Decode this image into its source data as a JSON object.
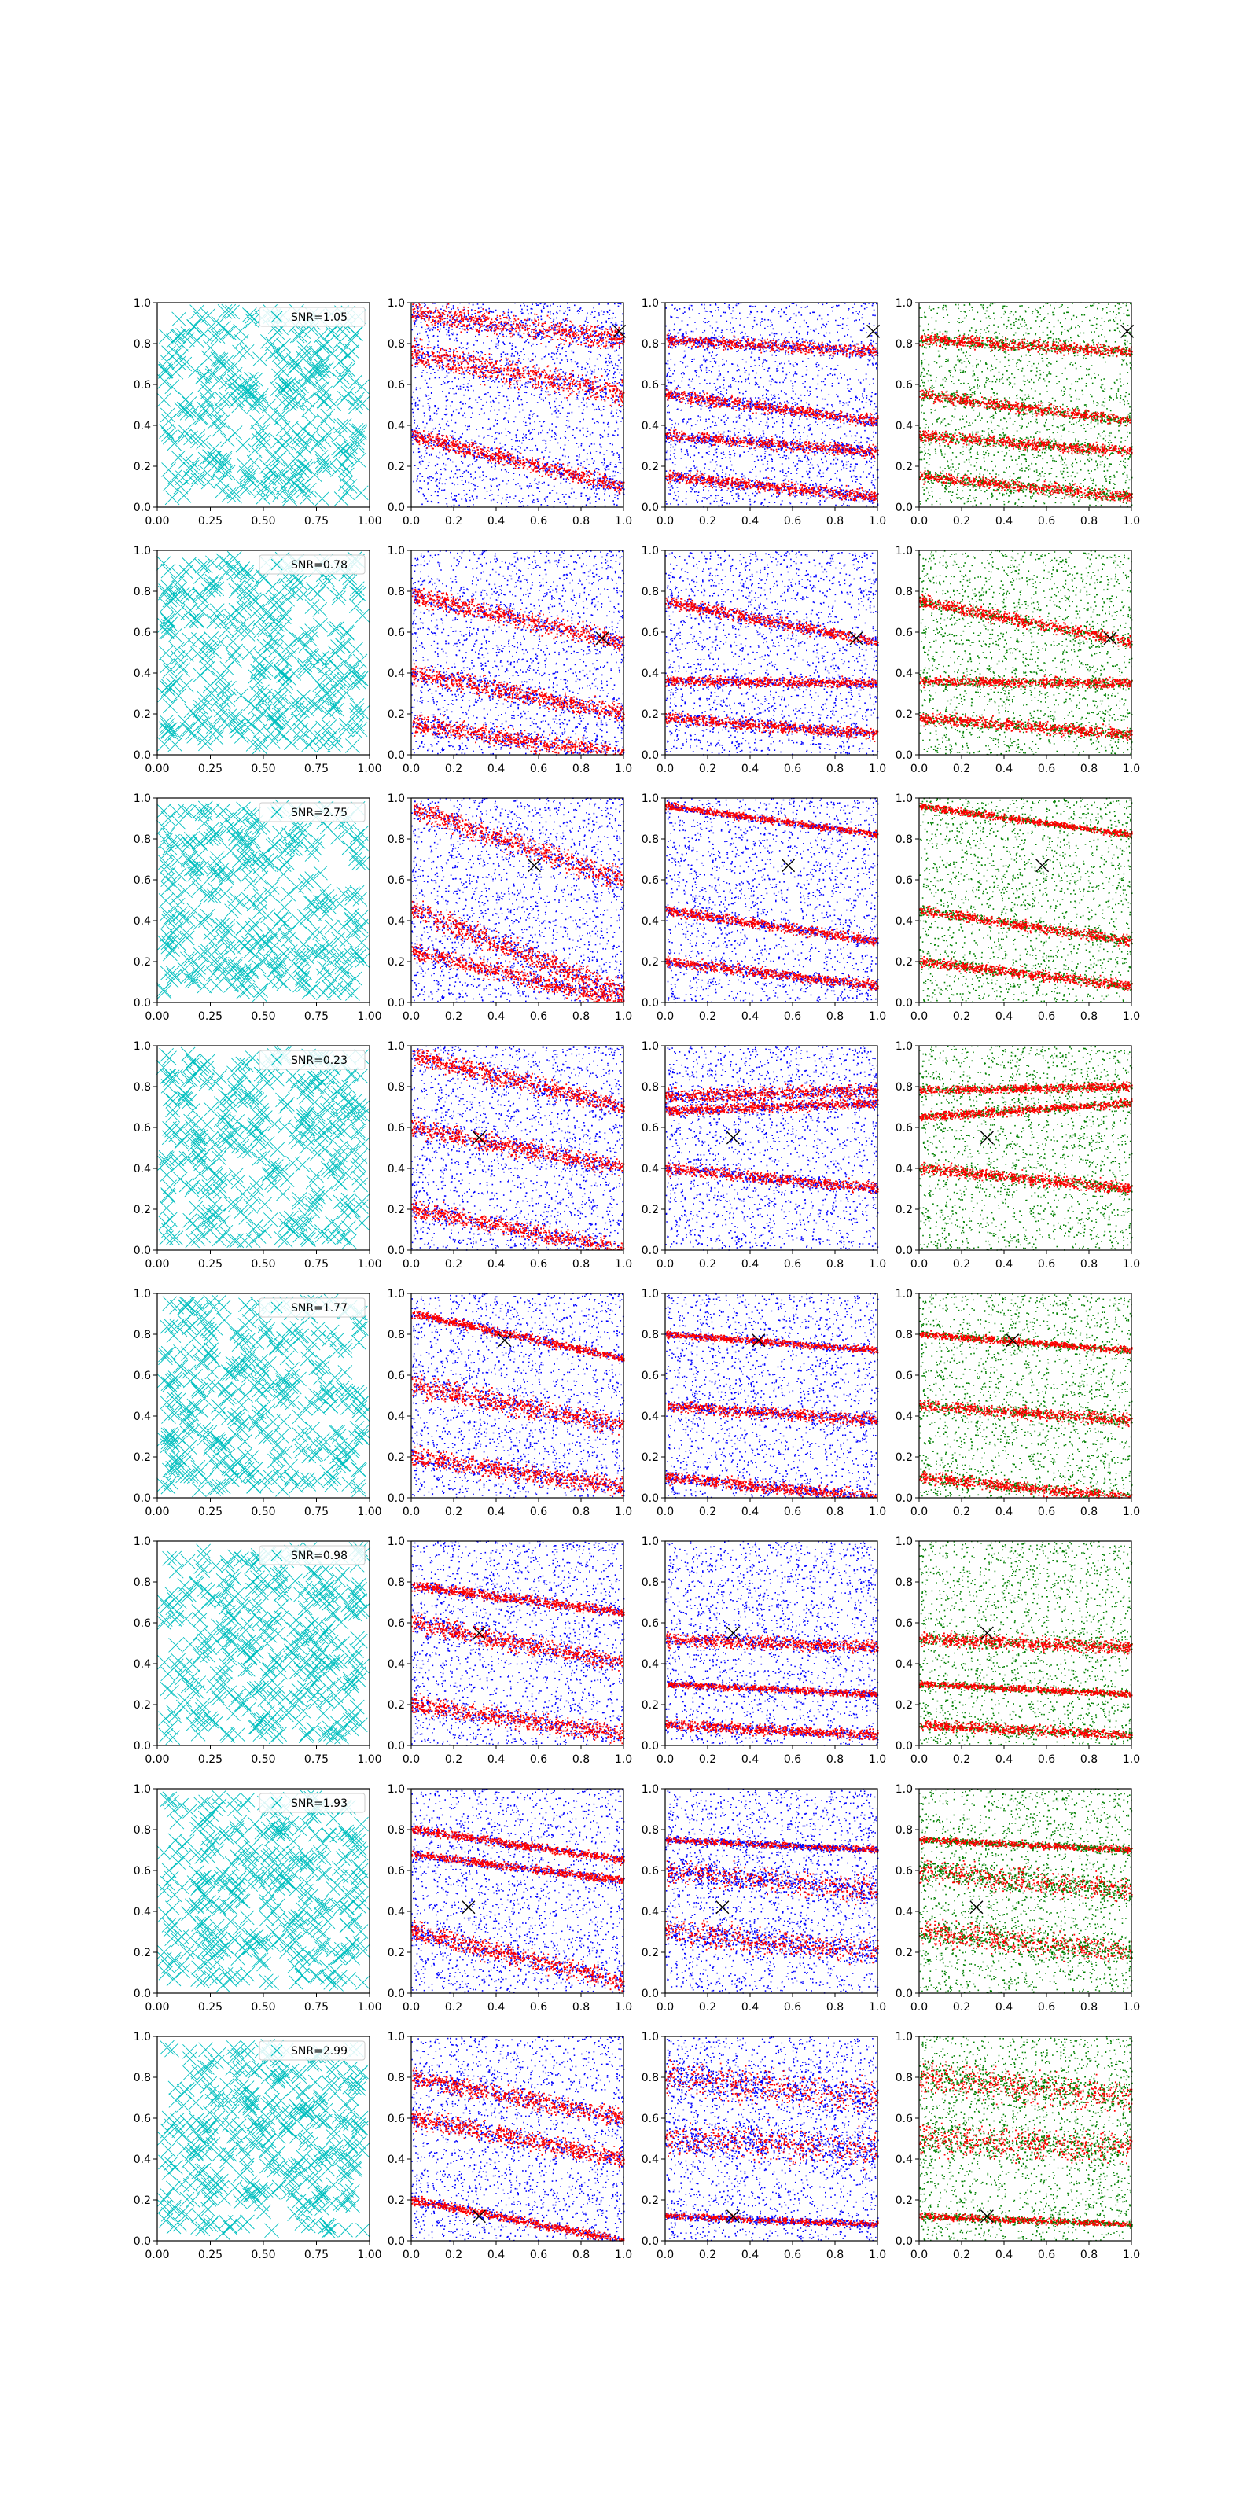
{
  "figure": {
    "rows": 8,
    "cols": 4,
    "background": "#ffffff",
    "colors": {
      "cyan": "#00bfbf",
      "red": "#ff0000",
      "blue": "#0000ff",
      "green": "#008000",
      "marker": "#000000",
      "axes": "#000000",
      "legend_border": "#cccccc"
    }
  },
  "tick_labels": {
    "col1_x": [
      "0.00",
      "0.25",
      "0.50",
      "0.75",
      "1.00"
    ],
    "col1_y": [
      "0.0",
      "0.2",
      "0.4",
      "0.6",
      "0.8",
      "1.0"
    ],
    "other_x": [
      "0.0",
      "0.2",
      "0.4",
      "0.6",
      "0.8",
      "1.0"
    ],
    "other_y": [
      "0.0",
      "0.2",
      "0.4",
      "0.6",
      "0.8",
      "1.0"
    ]
  },
  "chart_data": [
    {
      "type": "scatter",
      "panel": "column-1",
      "xlim": [
        0,
        1
      ],
      "ylim": [
        0,
        1
      ],
      "grid": false,
      "legend_placement": "top-right",
      "marker": "x",
      "marker_color": "#00bfbf",
      "legend_entries": [
        "SNR=1.05",
        "SNR=0.78",
        "SNR=2.75",
        "SNR=0.23",
        "SNR=1.77",
        "SNR=0.98",
        "SNR=1.93",
        "SNR=2.99"
      ],
      "points_per_panel": "dense uniform random, approx. 400 crosses"
    },
    {
      "type": "scatter",
      "panel": "columns-2-4",
      "xlim": [
        0,
        1
      ],
      "ylim": [
        0,
        1
      ],
      "grid": false,
      "series_colors": {
        "column-2": [
          "#ff0000",
          "#0000ff"
        ],
        "column-3": [
          "#ff0000",
          "#0000ff"
        ],
        "column-4": [
          "#ff0000",
          "#008000"
        ]
      },
      "rows": [
        {
          "marker_x": [
            0.98,
            0.86
          ],
          "col2": {
            "bands": [
              [
                0.95,
                0.82,
                0.28
              ],
              [
                0.75,
                0.55,
                0.3
              ],
              [
                0.35,
                0.1,
                0.18
              ]
            ],
            "red_frac": 0.48
          },
          "col3": {
            "bands": [
              [
                0.82,
                0.76,
                0.14
              ],
              [
                0.55,
                0.42,
                0.14
              ],
              [
                0.35,
                0.27,
                0.14
              ],
              [
                0.15,
                0.05,
                0.14
              ]
            ],
            "red_frac": 0.4
          },
          "col4": {
            "bands": [
              [
                0.82,
                0.76,
                0.14
              ],
              [
                0.55,
                0.42,
                0.14
              ],
              [
                0.35,
                0.27,
                0.14
              ],
              [
                0.15,
                0.05,
                0.14
              ]
            ],
            "red_frac": 0.4
          }
        },
        {
          "marker_x": [
            0.9,
            0.57
          ],
          "col2": {
            "bands": [
              [
                0.78,
                0.55,
                0.22
              ],
              [
                0.4,
                0.2,
                0.22
              ],
              [
                0.15,
                0.0,
                0.22
              ]
            ],
            "red_frac": 0.5
          },
          "col3": {
            "bands": [
              [
                0.36,
                0.35,
                0.12
              ],
              [
                0.75,
                0.55,
                0.14
              ],
              [
                0.18,
                0.1,
                0.14
              ]
            ],
            "red_frac": 0.45
          },
          "col4": {
            "bands": [
              [
                0.36,
                0.35,
                0.12
              ],
              [
                0.75,
                0.55,
                0.14
              ],
              [
                0.18,
                0.1,
                0.14
              ]
            ],
            "red_frac": 0.45
          }
        },
        {
          "marker_x": [
            0.58,
            0.67
          ],
          "col2": {
            "bands": [
              [
                0.95,
                0.6,
                0.26
              ],
              [
                0.45,
                0.05,
                0.26
              ],
              [
                0.25,
                0.0,
                0.2
              ]
            ],
            "red_frac": 0.5
          },
          "col3": {
            "bands": [
              [
                0.96,
                0.82,
                0.08
              ],
              [
                0.45,
                0.3,
                0.12
              ],
              [
                0.2,
                0.08,
                0.12
              ]
            ],
            "red_frac": 0.45
          },
          "col4": {
            "bands": [
              [
                0.96,
                0.82,
                0.08
              ],
              [
                0.45,
                0.3,
                0.12
              ],
              [
                0.2,
                0.08,
                0.12
              ]
            ],
            "red_frac": 0.45
          }
        },
        {
          "marker_x": [
            0.32,
            0.55
          ],
          "col2": {
            "bands": [
              [
                0.95,
                0.7,
                0.22
              ],
              [
                0.6,
                0.4,
                0.22
              ],
              [
                0.2,
                0.0,
                0.22
              ]
            ],
            "red_frac": 0.5
          },
          "col3": {
            "bands": [
              [
                0.75,
                0.78,
                0.16
              ],
              [
                0.68,
                0.72,
                0.12
              ],
              [
                0.4,
                0.3,
                0.14
              ]
            ],
            "red_frac": 0.42
          },
          "col4": {
            "bands": [
              [
                0.65,
                0.72,
                0.1
              ],
              [
                0.78,
                0.8,
                0.1
              ],
              [
                0.4,
                0.3,
                0.14
              ]
            ],
            "red_frac": 0.5
          }
        },
        {
          "marker_x": [
            0.44,
            0.77
          ],
          "col2": {
            "bands": [
              [
                0.9,
                0.68,
                0.1
              ],
              [
                0.55,
                0.35,
                0.26
              ],
              [
                0.2,
                0.05,
                0.22
              ]
            ],
            "red_frac": 0.5
          },
          "col3": {
            "bands": [
              [
                0.8,
                0.72,
                0.08
              ],
              [
                0.45,
                0.38,
                0.14
              ],
              [
                0.1,
                0.0,
                0.14
              ]
            ],
            "red_frac": 0.45
          },
          "col4": {
            "bands": [
              [
                0.8,
                0.72,
                0.08
              ],
              [
                0.45,
                0.38,
                0.14
              ],
              [
                0.1,
                0.0,
                0.14
              ]
            ],
            "red_frac": 0.45
          }
        },
        {
          "marker_x": [
            0.32,
            0.55
          ],
          "col2": {
            "bands": [
              [
                0.78,
                0.65,
                0.12
              ],
              [
                0.6,
                0.4,
                0.22
              ],
              [
                0.2,
                0.05,
                0.22
              ]
            ],
            "red_frac": 0.5
          },
          "col3": {
            "bands": [
              [
                0.52,
                0.48,
                0.16
              ],
              [
                0.3,
                0.25,
                0.08
              ],
              [
                0.1,
                0.05,
                0.12
              ]
            ],
            "red_frac": 0.45
          },
          "col4": {
            "bands": [
              [
                0.52,
                0.48,
                0.16
              ],
              [
                0.3,
                0.25,
                0.08
              ],
              [
                0.1,
                0.05,
                0.12
              ]
            ],
            "red_frac": 0.45
          }
        },
        {
          "marker_x": [
            0.27,
            0.42
          ],
          "col2": {
            "bands": [
              [
                0.8,
                0.65,
                0.1
              ],
              [
                0.68,
                0.55,
                0.1
              ],
              [
                0.3,
                0.05,
                0.22
              ]
            ],
            "red_frac": 0.45
          },
          "col3": {
            "bands": [
              [
                0.75,
                0.7,
                0.08
              ],
              [
                0.6,
                0.5,
                0.3
              ],
              [
                0.3,
                0.2,
                0.3
              ]
            ],
            "red_frac": 0.25
          },
          "col4": {
            "bands": [
              [
                0.75,
                0.7,
                0.08
              ],
              [
                0.6,
                0.5,
                0.3
              ],
              [
                0.3,
                0.2,
                0.3
              ]
            ],
            "red_frac": 0.25
          }
        },
        {
          "marker_x": [
            0.32,
            0.12
          ],
          "col2": {
            "bands": [
              [
                0.2,
                0.0,
                0.1
              ],
              [
                0.6,
                0.4,
                0.22
              ],
              [
                0.8,
                0.6,
                0.22
              ]
            ],
            "red_frac": 0.5
          },
          "col3": {
            "bands": [
              [
                0.12,
                0.08,
                0.08
              ],
              [
                0.5,
                0.45,
                0.4
              ],
              [
                0.8,
                0.7,
                0.4
              ]
            ],
            "red_frac": 0.25
          },
          "col4": {
            "bands": [
              [
                0.12,
                0.08,
                0.08
              ],
              [
                0.5,
                0.45,
                0.4
              ],
              [
                0.8,
                0.7,
                0.4
              ]
            ],
            "red_frac": 0.25
          }
        }
      ]
    }
  ]
}
